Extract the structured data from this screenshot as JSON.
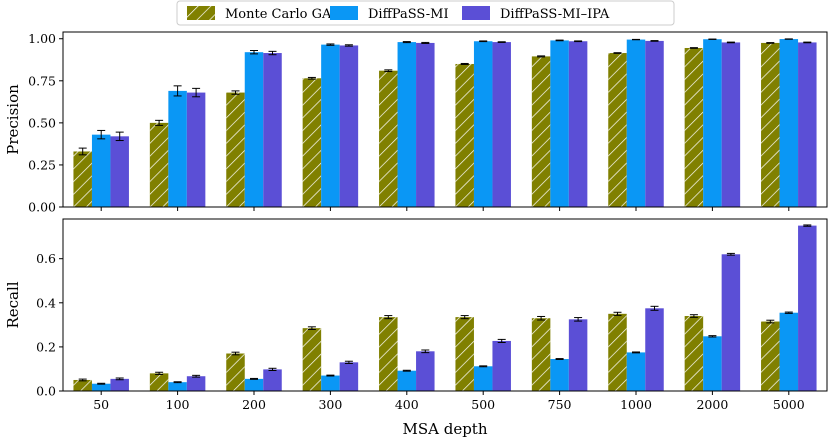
{
  "chart_data": {
    "type": "bar",
    "categories": [
      "50",
      "100",
      "200",
      "300",
      "400",
      "500",
      "750",
      "1000",
      "2000",
      "5000"
    ],
    "xlabel": "MSA depth",
    "legend": {
      "placement": "top-center",
      "entries": [
        "Monte Carlo GA",
        "DiffPaSS-MI",
        "DiffPaSS-MI–IPA"
      ]
    },
    "colors": {
      "Monte Carlo GA": "#808000",
      "DiffPaSS-MI": "#0a97f5",
      "DiffPaSS-MI–IPA": "#5b4fd6"
    },
    "panels": [
      {
        "ylabel": "Precision",
        "ylim": [
          0,
          1.04
        ],
        "yticks": [
          0.0,
          0.25,
          0.5,
          0.75,
          1.0
        ],
        "ytick_labels": [
          "0.00",
          "0.25",
          "0.50",
          "0.75",
          "1.00"
        ],
        "series": [
          {
            "name": "Monte Carlo GA",
            "values": [
              0.33,
              0.5,
              0.68,
              0.765,
              0.81,
              0.85,
              0.895,
              0.915,
              0.945,
              0.975
            ],
            "errors": [
              0.02,
              0.015,
              0.01,
              0.005,
              0.005,
              0.003,
              0.003,
              0.002,
              0.002,
              0.002
            ]
          },
          {
            "name": "DiffPaSS-MI",
            "values": [
              0.43,
              0.69,
              0.92,
              0.965,
              0.98,
              0.985,
              0.99,
              0.995,
              0.997,
              0.998
            ],
            "errors": [
              0.025,
              0.03,
              0.01,
              0.004,
              0.003,
              0.002,
              0.002,
              0.001,
              0.001,
              0.001
            ]
          },
          {
            "name": "DiffPaSS-MI–IPA",
            "values": [
              0.42,
              0.68,
              0.915,
              0.96,
              0.975,
              0.98,
              0.985,
              0.987,
              0.978,
              0.978
            ],
            "errors": [
              0.025,
              0.025,
              0.01,
              0.004,
              0.003,
              0.002,
              0.002,
              0.002,
              0.002,
              0.002
            ]
          }
        ]
      },
      {
        "ylabel": "Recall",
        "ylim": [
          0,
          0.78
        ],
        "yticks": [
          0.0,
          0.2,
          0.4,
          0.6
        ],
        "ytick_labels": [
          "0.0",
          "0.2",
          "0.4",
          "0.6"
        ],
        "series": [
          {
            "name": "Monte Carlo GA",
            "values": [
              0.05,
              0.08,
              0.17,
              0.285,
              0.335,
              0.335,
              0.33,
              0.35,
              0.34,
              0.315
            ],
            "errors": [
              0.004,
              0.005,
              0.006,
              0.006,
              0.007,
              0.007,
              0.008,
              0.007,
              0.006,
              0.006
            ]
          },
          {
            "name": "DiffPaSS-MI",
            "values": [
              0.033,
              0.04,
              0.055,
              0.07,
              0.092,
              0.112,
              0.145,
              0.175,
              0.248,
              0.355
            ],
            "errors": [
              0.002,
              0.002,
              0.002,
              0.002,
              0.002,
              0.002,
              0.002,
              0.002,
              0.003,
              0.003
            ]
          },
          {
            "name": "DiffPaSS-MI–IPA",
            "values": [
              0.055,
              0.067,
              0.098,
              0.13,
              0.18,
              0.227,
              0.325,
              0.375,
              0.62,
              0.75
            ],
            "errors": [
              0.004,
              0.004,
              0.005,
              0.005,
              0.006,
              0.007,
              0.008,
              0.009,
              0.004,
              0.003
            ]
          }
        ]
      }
    ]
  }
}
